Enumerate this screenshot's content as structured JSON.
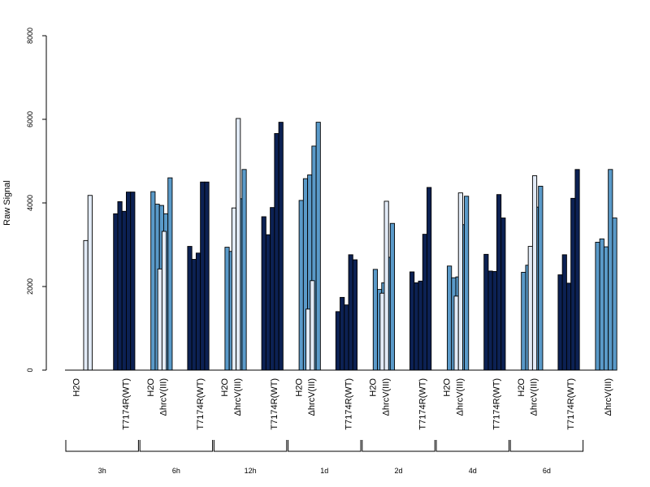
{
  "chart_data": {
    "type": "bar",
    "ylabel": "Raw Signal",
    "ylim": [
      0,
      8000
    ],
    "yticks": [
      0,
      2000,
      4000,
      6000,
      8000
    ],
    "treatments": [
      "H2O",
      "T7174R(WT)",
      "ΔhrcV(III)"
    ],
    "colors": {
      "H2O": "#e2ebf7",
      "T7174R(WT)": "#0c2153",
      "ΔhrcV(III)": "#5a9ac9"
    },
    "groups": [
      {
        "label": "3h",
        "H2O": [
          0,
          3100,
          4180
        ],
        "T7174R(WT)": [
          3740,
          4030,
          3800,
          4260,
          4260
        ],
        "ΔhrcV(III)": [
          4270,
          3970,
          3940,
          3740,
          4600
        ]
      },
      {
        "label": "6h",
        "H2O": [
          0,
          2420,
          3320
        ],
        "T7174R(WT)": [
          2960,
          2650,
          2800,
          4500,
          4500
        ],
        "ΔhrcV(III)": [
          2940,
          2840,
          2900,
          4100,
          4800
        ]
      },
      {
        "label": "12h",
        "H2O": [
          0,
          3880,
          6020
        ],
        "T7174R(WT)": [
          3670,
          3240,
          3890,
          5660,
          5930
        ],
        "ΔhrcV(III)": [
          4060,
          4580,
          4670,
          5360,
          5930
        ]
      },
      {
        "label": "1d",
        "H2O": [
          0,
          1460,
          2140
        ],
        "T7174R(WT)": [
          1400,
          1740,
          1560,
          2760,
          2640
        ],
        "ΔhrcV(III)": [
          2410,
          1930,
          2090,
          2700,
          3510
        ]
      },
      {
        "label": "2d",
        "H2O": [
          0,
          1840,
          4040
        ],
        "T7174R(WT)": [
          2350,
          2090,
          2130,
          3250,
          4370
        ],
        "ΔhrcV(III)": [
          2490,
          2210,
          2230,
          3480,
          4160
        ]
      },
      {
        "label": "4d",
        "H2O": [
          0,
          1770,
          4240
        ],
        "T7174R(WT)": [
          2770,
          2370,
          2360,
          4200,
          3640
        ],
        "ΔhrcV(III)": [
          2340,
          2510,
          2350,
          3900,
          4400
        ]
      },
      {
        "label": "6d",
        "H2O": [
          0,
          2960,
          4650
        ],
        "T7174R(WT)": [
          2280,
          2760,
          2080,
          4110,
          4800
        ],
        "ΔhrcV(III)": [
          3060,
          3140,
          2950,
          4800,
          3640
        ]
      }
    ]
  }
}
